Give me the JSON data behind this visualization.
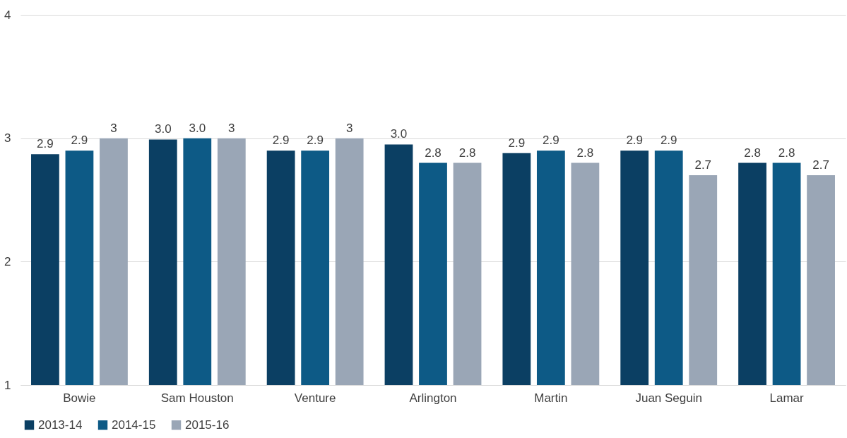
{
  "chart_data": {
    "type": "bar",
    "categories": [
      "Bowie",
      "Sam Houston",
      "Venture",
      "Arlington",
      "Martin",
      "Juan Seguin",
      "Lamar"
    ],
    "series": [
      {
        "name": "2013-14",
        "color": "#0b3f63",
        "values": [
          2.87,
          2.99,
          2.9,
          2.95,
          2.88,
          2.9,
          2.8
        ],
        "value_labels": [
          "2.9",
          "3.0",
          "2.9",
          "3.0",
          "2.9",
          "2.9",
          "2.8"
        ]
      },
      {
        "name": "2014-15",
        "color": "#0d5a86",
        "values": [
          2.9,
          3.0,
          2.9,
          2.8,
          2.9,
          2.9,
          2.8
        ],
        "value_labels": [
          "2.9",
          "3.0",
          "2.9",
          "2.8",
          "2.9",
          "2.9",
          "2.8"
        ]
      },
      {
        "name": "2015-16",
        "color": "#9aa6b6",
        "values": [
          3,
          3,
          3,
          2.8,
          2.8,
          2.7,
          2.7
        ],
        "value_labels": [
          "3",
          "3",
          "3",
          "2.8",
          "2.8",
          "2.7",
          "2.7"
        ]
      }
    ],
    "ylim": [
      1,
      4
    ],
    "yticks": [
      1,
      2,
      3,
      4
    ],
    "grid": "y",
    "legend": "bottom"
  }
}
